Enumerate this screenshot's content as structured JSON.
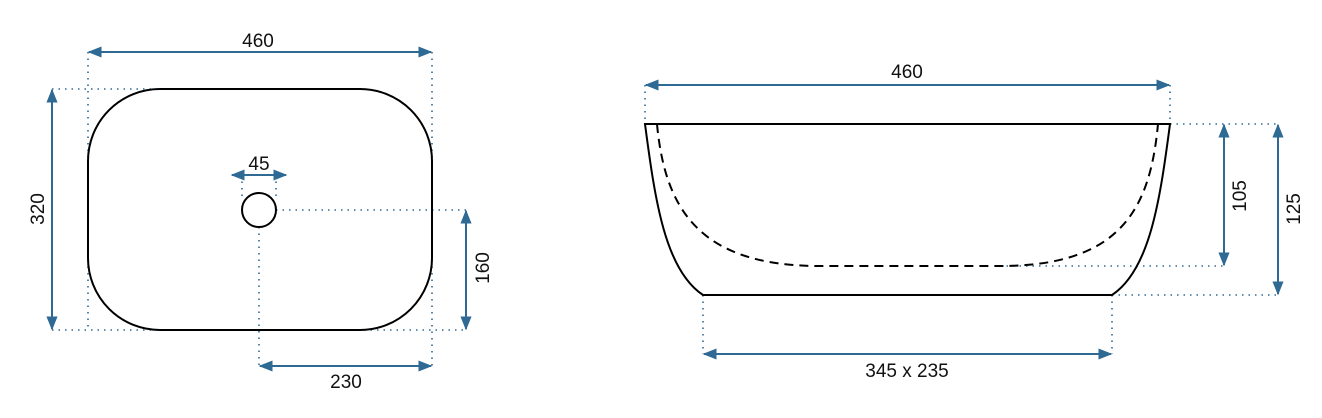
{
  "colors": {
    "dimension": "#2e6a94",
    "outline": "#000000"
  },
  "top_view": {
    "width_label": "460",
    "depth_label": "320",
    "drain_diameter_label": "45",
    "drain_offset_y_label": "160",
    "drain_offset_x_label": "230"
  },
  "side_view": {
    "width_label": "460",
    "inner_depth_label": "105",
    "height_label": "125",
    "base_label": "345 x 235"
  }
}
